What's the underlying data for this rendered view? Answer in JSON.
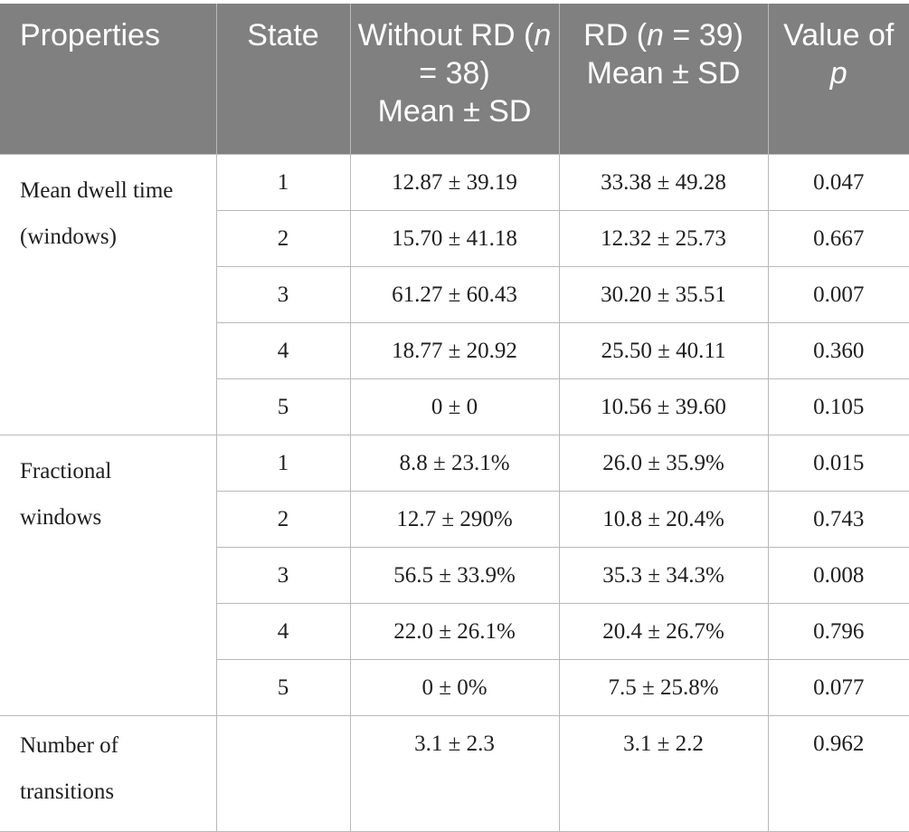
{
  "table": {
    "headers": {
      "properties": "Properties",
      "state": "State",
      "without_rd": {
        "prefix": "Without RD (",
        "n_var": "n",
        "n_val": " = 38)",
        "stat": "Mean ± SD"
      },
      "rd": {
        "prefix": "RD (",
        "n_var": "n",
        "n_val": " = 39)",
        "stat": "Mean ± SD"
      },
      "pvalue": {
        "prefix": "Value of ",
        "var": "p"
      }
    },
    "groups": [
      {
        "label": "Mean dwell time\n(windows)",
        "rows": [
          {
            "state": "1",
            "without_rd": "12.87 ± 39.19",
            "rd": "33.38 ± 49.28",
            "p": "0.047"
          },
          {
            "state": "2",
            "without_rd": "15.70 ± 41.18",
            "rd": "12.32 ± 25.73",
            "p": "0.667"
          },
          {
            "state": "3",
            "without_rd": "61.27 ± 60.43",
            "rd": "30.20 ± 35.51",
            "p": "0.007"
          },
          {
            "state": "4",
            "without_rd": "18.77 ± 20.92",
            "rd": "25.50 ± 40.11",
            "p": "0.360"
          },
          {
            "state": "5",
            "without_rd": "0 ± 0",
            "rd": "10.56 ± 39.60",
            "p": "0.105"
          }
        ]
      },
      {
        "label": "Fractional\nwindows",
        "rows": [
          {
            "state": "1",
            "without_rd": "8.8 ± 23.1%",
            "rd": "26.0 ± 35.9%",
            "p": "0.015"
          },
          {
            "state": "2",
            "without_rd": "12.7 ± 290%",
            "rd": "10.8 ± 20.4%",
            "p": "0.743"
          },
          {
            "state": "3",
            "without_rd": "56.5 ± 33.9%",
            "rd": "35.3 ± 34.3%",
            "p": "0.008"
          },
          {
            "state": "4",
            "without_rd": "22.0 ± 26.1%",
            "rd": "20.4 ± 26.7%",
            "p": "0.796"
          },
          {
            "state": "5",
            "without_rd": "0 ± 0%",
            "rd": "7.5 ± 25.8%",
            "p": "0.077"
          }
        ]
      }
    ],
    "transitions": {
      "label": "Number of\ntransitions",
      "state": "",
      "without_rd": "3.1 ± 2.3",
      "rd": "3.1 ± 2.2",
      "p": "0.962"
    }
  }
}
